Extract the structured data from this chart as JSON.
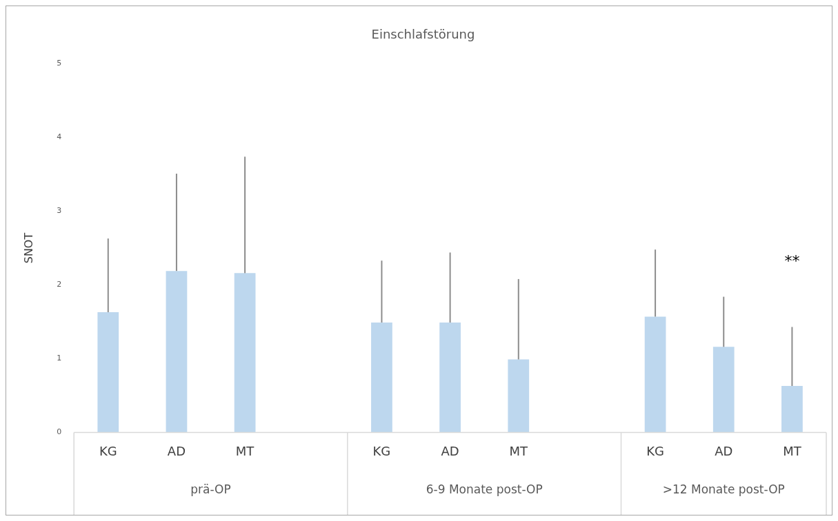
{
  "chart_data": {
    "type": "bar",
    "title": "Einschlafstörung",
    "ylabel": "SNOT",
    "categories": [
      "KG",
      "AD",
      "MT",
      null,
      "KG",
      "AD",
      "MT",
      null,
      "KG",
      "AD",
      "MT"
    ],
    "values": [
      1.63,
      2.19,
      2.16,
      null,
      1.49,
      1.49,
      0.99,
      null,
      1.57,
      1.16,
      0.63
    ],
    "errors": [
      [
        1.63,
        2.63
      ],
      [
        2.19,
        3.51
      ],
      [
        2.16,
        3.74
      ],
      null,
      [
        1.49,
        2.33
      ],
      [
        1.49,
        2.44
      ],
      [
        0.99,
        2.08
      ],
      null,
      [
        1.57,
        2.48
      ],
      [
        1.16,
        1.84
      ],
      [
        0.63,
        1.43
      ]
    ],
    "color": "#bdd7ee",
    "ylim": [
      0,
      5
    ],
    "yticks": [
      0,
      1,
      2,
      3,
      4,
      5
    ],
    "grid": false,
    "legend": false,
    "annotations": [
      "prä-OP",
      "6-9 Monate post-OP",
      ">12 Monate post-OP",
      "**"
    ]
  }
}
